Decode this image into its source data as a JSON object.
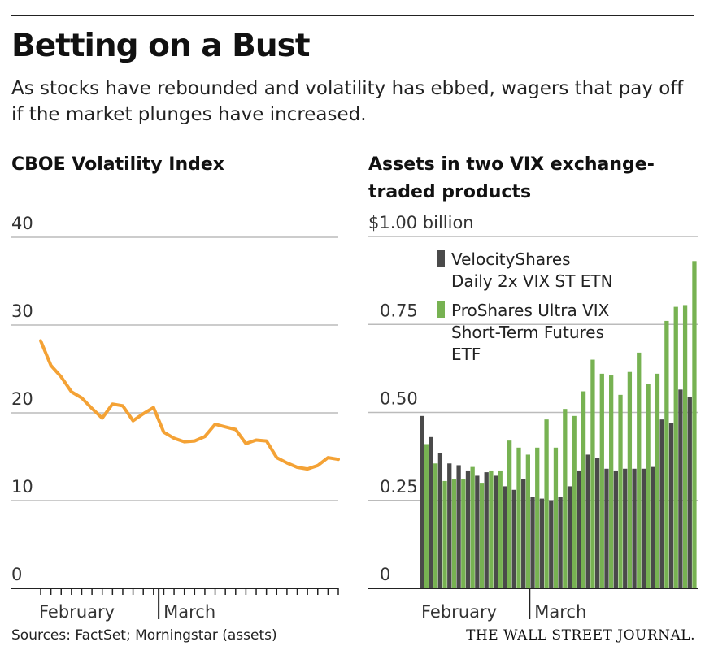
{
  "headline": "Betting on a Bust",
  "dek": "As stocks have rebounded and volatility has ebbed, wagers that pay off if the market plunges have increased.",
  "source": "Sources: FactSet; Morningstar (assets)",
  "brand": "THE WALL STREET JOURNAL.",
  "colors": {
    "vix_line": "#f4a235",
    "velocity": "#4a4a4a",
    "proshares": "#77b252",
    "gridline": "#bbbbbb",
    "axis": "#222222"
  },
  "chart_data": [
    {
      "type": "line",
      "title": "CBOE Volatility Index",
      "xlabel": "",
      "ylabel": "",
      "ylim": [
        0,
        40
      ],
      "y_ticks": [
        0,
        10,
        20,
        30,
        40
      ],
      "y_tick_labels": [
        "0",
        "10",
        "20",
        "30",
        "40"
      ],
      "x_month_labels": [
        "February",
        "March"
      ],
      "grid": true,
      "series": [
        {
          "values": [
            28.2,
            25.4,
            24.1,
            22.4,
            21.7,
            20.5,
            19.4,
            21.0,
            20.8,
            19.1,
            19.9,
            20.6,
            17.8,
            17.1,
            16.7,
            16.8,
            17.3,
            18.7,
            18.4,
            18.1,
            16.5,
            16.9,
            16.8,
            14.9,
            14.3,
            13.8,
            13.6,
            14.0,
            14.9,
            14.7
          ]
        }
      ]
    },
    {
      "type": "bar",
      "title": "Assets in two VIX exchange-traded products",
      "unit_label": "$1.00 billion",
      "xlabel": "",
      "ylabel": "",
      "ylim": [
        0,
        1.0
      ],
      "y_ticks": [
        0,
        0.25,
        0.5,
        0.75
      ],
      "y_tick_labels": [
        "0",
        "0.25",
        "0.50",
        "0.75"
      ],
      "x_month_labels": [
        "February",
        "March"
      ],
      "grid": true,
      "legend_position": "top-left",
      "series": [
        {
          "name": "VelocityShares Daily 2x VIX ST ETN",
          "values": [
            0.49,
            0.43,
            0.385,
            0.355,
            0.35,
            0.335,
            0.32,
            0.33,
            0.32,
            0.29,
            0.28,
            0.31,
            0.26,
            0.255,
            0.25,
            0.26,
            0.29,
            0.335,
            0.38,
            0.37,
            0.34,
            0.335,
            0.34,
            0.34,
            0.34,
            0.345,
            0.48,
            0.47,
            0.565,
            0.545
          ]
        },
        {
          "name": "ProShares Ultra VIX Short-Term Futures ETF",
          "values": [
            0.41,
            0.355,
            0.305,
            0.31,
            0.31,
            0.345,
            0.3,
            0.335,
            0.335,
            0.42,
            0.4,
            0.38,
            0.4,
            0.48,
            0.4,
            0.51,
            0.49,
            0.56,
            0.65,
            0.61,
            0.605,
            0.55,
            0.615,
            0.67,
            0.58,
            0.61,
            0.76,
            0.8,
            0.805,
            0.93
          ]
        }
      ]
    }
  ]
}
